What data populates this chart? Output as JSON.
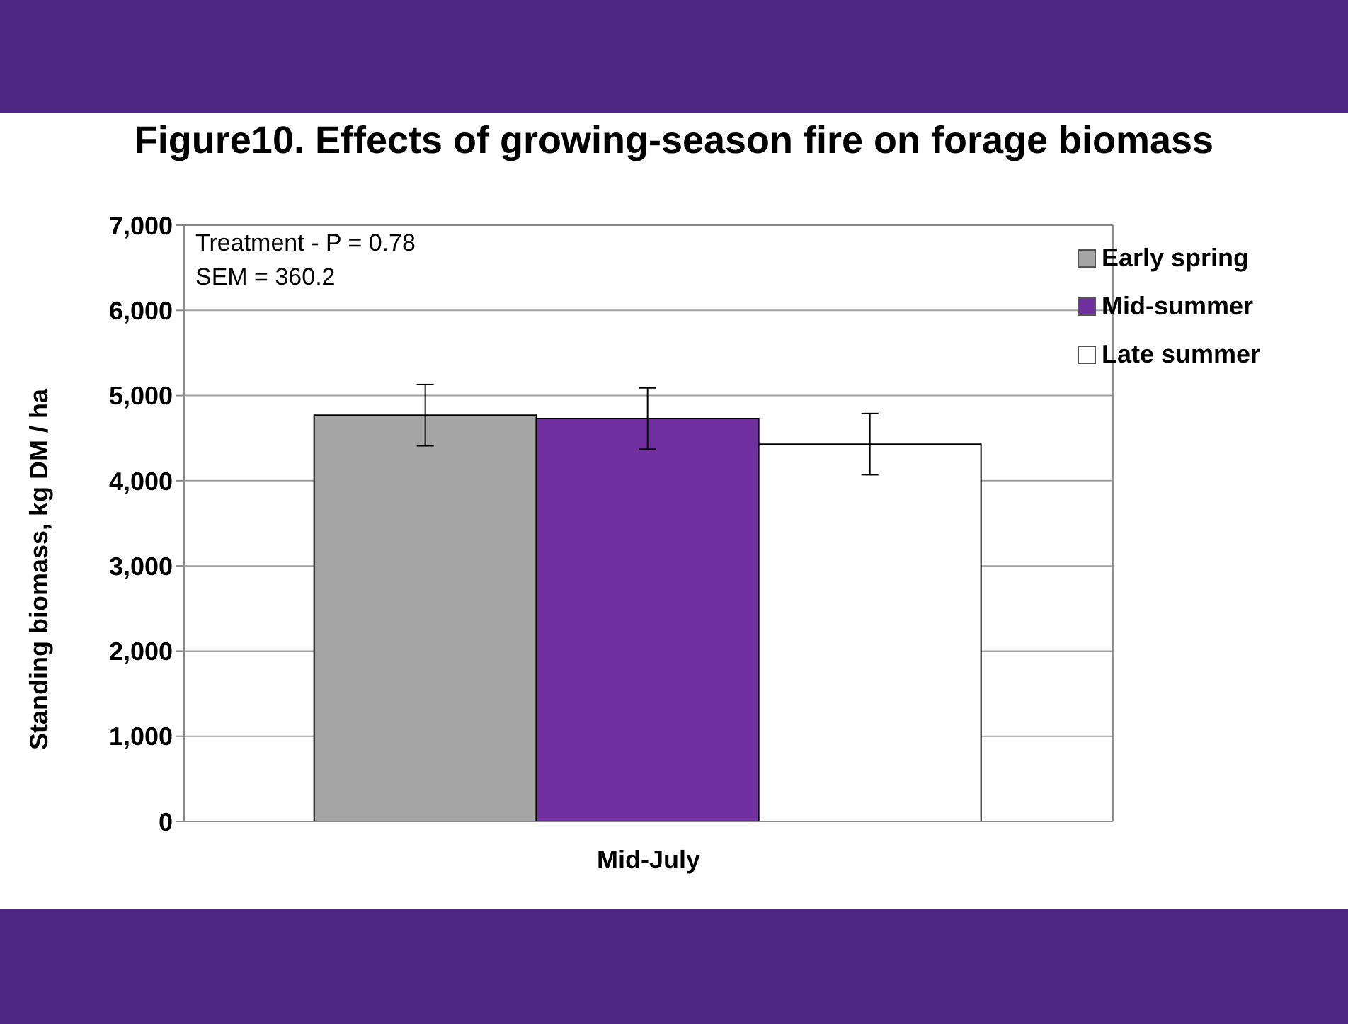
{
  "chart_data": {
    "type": "bar",
    "title": "Figure10. Effects of growing-season fire on forage biomass",
    "ylabel": "Standing biomass, kg DM / ha",
    "categories": [
      "Mid-July"
    ],
    "series": [
      {
        "name": "Early spring",
        "color": "#a6a6a6",
        "values": [
          4770
        ],
        "errors": [
          360
        ]
      },
      {
        "name": "Mid-summer",
        "color": "#7030a0",
        "values": [
          4730
        ],
        "errors": [
          360
        ]
      },
      {
        "name": "Late summer",
        "color": "#ffffff",
        "values": [
          4430
        ],
        "errors": [
          360
        ]
      }
    ],
    "ylim": [
      0,
      7000
    ],
    "yticks": [
      {
        "value": 0,
        "label": "0"
      },
      {
        "value": 1000,
        "label": "1,000"
      },
      {
        "value": 2000,
        "label": "2,000"
      },
      {
        "value": 3000,
        "label": "3,000"
      },
      {
        "value": 4000,
        "label": "4,000"
      },
      {
        "value": 5000,
        "label": "5,000"
      },
      {
        "value": 6000,
        "label": "6,000"
      },
      {
        "value": 7000,
        "label": "7,000"
      }
    ],
    "grid": "y",
    "legend": "top right",
    "annotations": [
      "Treatment - P = 0.78",
      "SEM = 360.2"
    ]
  }
}
